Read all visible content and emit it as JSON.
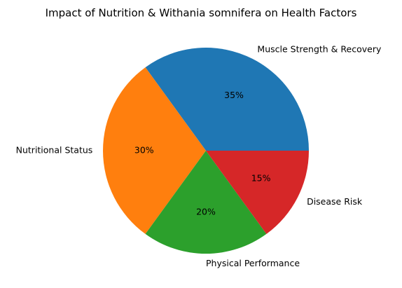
{
  "chart_data": {
    "type": "pie",
    "title": "Impact of Nutrition & Withania somnifera on Health Factors",
    "categories": [
      "Muscle Strength & Recovery",
      "Nutritional Status",
      "Physical Performance",
      "Disease Risk"
    ],
    "values": [
      35,
      30,
      20,
      15
    ],
    "value_labels": [
      "35%",
      "30%",
      "20%",
      "15%"
    ],
    "colors": [
      "#1f77b4",
      "#ff7f0e",
      "#2ca02c",
      "#d62728"
    ]
  }
}
